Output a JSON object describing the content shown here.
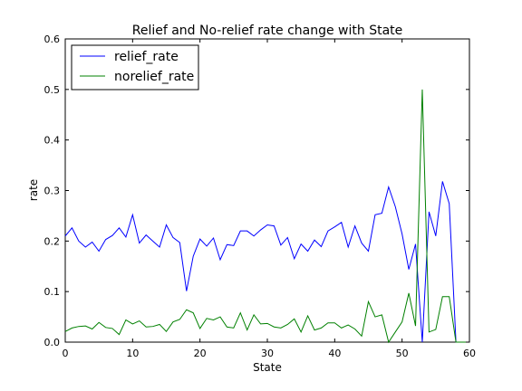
{
  "chart_data": {
    "type": "line",
    "title": "Relief and No-relief rate change with State",
    "xlabel": "State",
    "ylabel": "rate",
    "xlim": [
      0,
      60
    ],
    "ylim": [
      0,
      0.6
    ],
    "xticks": [
      0,
      10,
      20,
      30,
      40,
      50,
      60
    ],
    "yticks": [
      0.0,
      0.1,
      0.2,
      0.3,
      0.4,
      0.5,
      0.6
    ],
    "ytick_labels": [
      "0.0",
      "0.1",
      "0.2",
      "0.3",
      "0.4",
      "0.5",
      "0.6"
    ],
    "grid": false,
    "legend_position": "top-left",
    "series": [
      {
        "name": "relief_rate",
        "color": "#0000ff",
        "x": [
          0,
          1,
          2,
          3,
          4,
          5,
          6,
          7,
          8,
          9,
          10,
          11,
          12,
          13,
          14,
          15,
          16,
          17,
          18,
          19,
          20,
          21,
          22,
          23,
          24,
          25,
          26,
          27,
          28,
          29,
          30,
          31,
          32,
          33,
          34,
          35,
          36,
          37,
          38,
          39,
          40,
          41,
          42,
          43,
          44,
          45,
          46,
          47,
          48,
          49,
          50,
          51,
          52,
          53,
          54,
          55,
          56,
          57,
          58,
          59,
          60
        ],
        "values": [
          0.21,
          0.226,
          0.2,
          0.188,
          0.198,
          0.18,
          0.203,
          0.211,
          0.226,
          0.208,
          0.252,
          0.196,
          0.212,
          0.2,
          0.188,
          0.232,
          0.207,
          0.197,
          0.101,
          0.17,
          0.204,
          0.19,
          0.206,
          0.163,
          0.193,
          0.191,
          0.22,
          0.22,
          0.21,
          0.222,
          0.232,
          0.23,
          0.192,
          0.207,
          0.165,
          0.194,
          0.18,
          0.202,
          0.189,
          0.22,
          0.228,
          0.237,
          0.188,
          0.23,
          0.196,
          0.18,
          0.252,
          0.255,
          0.307,
          0.268,
          0.214,
          0.144,
          0.194,
          0.0,
          0.258,
          0.21,
          0.318,
          0.274,
          0.0,
          0.0,
          0.0
        ]
      },
      {
        "name": "norelief_rate",
        "color": "#008000",
        "x": [
          0,
          1,
          2,
          3,
          4,
          5,
          6,
          7,
          8,
          9,
          10,
          11,
          12,
          13,
          14,
          15,
          16,
          17,
          18,
          19,
          20,
          21,
          22,
          23,
          24,
          25,
          26,
          27,
          28,
          29,
          30,
          31,
          32,
          33,
          34,
          35,
          36,
          37,
          38,
          39,
          40,
          41,
          42,
          43,
          44,
          45,
          46,
          47,
          48,
          49,
          50,
          51,
          52,
          53,
          54,
          55,
          56,
          57,
          58,
          59,
          60
        ],
        "values": [
          0.021,
          0.028,
          0.031,
          0.032,
          0.026,
          0.039,
          0.029,
          0.027,
          0.015,
          0.044,
          0.036,
          0.042,
          0.03,
          0.031,
          0.035,
          0.021,
          0.04,
          0.045,
          0.064,
          0.058,
          0.027,
          0.047,
          0.044,
          0.05,
          0.03,
          0.028,
          0.058,
          0.024,
          0.054,
          0.036,
          0.037,
          0.03,
          0.028,
          0.035,
          0.046,
          0.02,
          0.052,
          0.024,
          0.028,
          0.038,
          0.038,
          0.028,
          0.034,
          0.026,
          0.012,
          0.08,
          0.05,
          0.054,
          0.0,
          0.02,
          0.04,
          0.097,
          0.032,
          0.5,
          0.02,
          0.025,
          0.09,
          0.09,
          0.0,
          0.0,
          0.0
        ]
      }
    ]
  }
}
